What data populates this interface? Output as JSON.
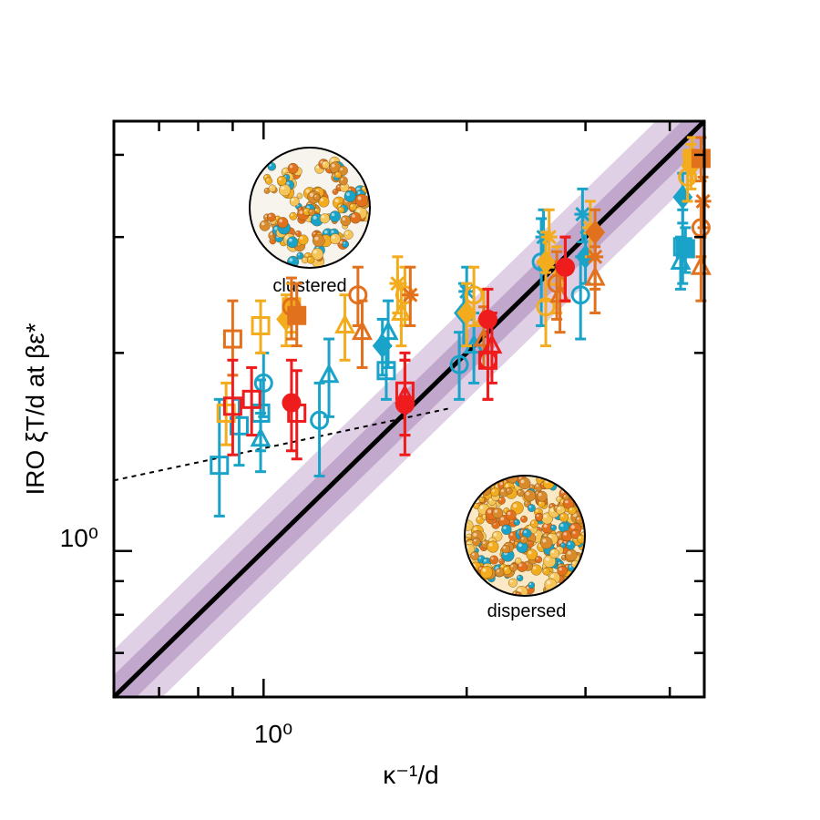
{
  "chart_data": {
    "type": "scatter",
    "scale": "log-log",
    "xlabel": "κ⁻¹/d",
    "ylabel": "IRO ξT/d at βε*",
    "xlim": [
      0.6,
      4.5
    ],
    "ylim": [
      0.6,
      4.5
    ],
    "x_tick_labels": [
      {
        "value": 1.0,
        "text": "10⁰"
      }
    ],
    "y_tick_labels": [
      {
        "value": 1.0,
        "text": "10⁰"
      }
    ],
    "reference_line": {
      "description": "y = x",
      "color": "#000000"
    },
    "bands": [
      {
        "factor": 1.18,
        "color": "#d6c0de"
      },
      {
        "factor": 1.08,
        "color": "#b89ac4"
      }
    ],
    "fit_line": {
      "style": "dotted",
      "x": [
        0.6,
        1.9
      ],
      "y": [
        1.28,
        1.65
      ]
    },
    "insets": [
      {
        "label": "clustered",
        "x": 1.1,
        "y": 3.8,
        "state": "clustered"
      },
      {
        "label": "dispersed",
        "x": 2.9,
        "y": 1.0,
        "state": "dispersed"
      }
    ],
    "series": [
      {
        "name": "cyan-square-open",
        "color": "#1aa3c8",
        "marker": "square",
        "filled": false,
        "points": [
          {
            "x": 0.86,
            "y": 1.35,
            "lo": 1.13,
            "hi": 1.7
          },
          {
            "x": 0.92,
            "y": 1.55,
            "lo": 1.35,
            "hi": 1.7
          },
          {
            "x": 0.99,
            "y": 1.62,
            "lo": 1.42,
            "hi": 1.82
          },
          {
            "x": 1.52,
            "y": 1.88,
            "lo": 1.7,
            "hi": 2.05
          },
          {
            "x": 4.18,
            "y": 2.9,
            "lo": 2.55,
            "hi": 3.3
          }
        ]
      },
      {
        "name": "cyan-circle-open",
        "color": "#1aa3c8",
        "marker": "circle",
        "filled": false,
        "points": [
          {
            "x": 1.0,
            "y": 1.8,
            "lo": 1.6,
            "hi": 2.0
          },
          {
            "x": 1.21,
            "y": 1.58,
            "lo": 1.3,
            "hi": 1.8
          },
          {
            "x": 1.95,
            "y": 1.92,
            "lo": 1.7,
            "hi": 2.15
          },
          {
            "x": 2.58,
            "y": 2.75,
            "lo": 2.2,
            "hi": 3.2
          },
          {
            "x": 2.95,
            "y": 2.45,
            "lo": 2.1,
            "hi": 2.8
          }
        ]
      },
      {
        "name": "cyan-triangle-open",
        "color": "#1aa3c8",
        "marker": "triangle",
        "filled": false,
        "points": [
          {
            "x": 0.99,
            "y": 1.48,
            "lo": 1.32,
            "hi": 1.62
          },
          {
            "x": 1.25,
            "y": 1.85,
            "lo": 1.6,
            "hi": 2.1
          },
          {
            "x": 1.53,
            "y": 2.15,
            "lo": 1.9,
            "hi": 2.4
          },
          {
            "x": 2.05,
            "y": 2.05,
            "lo": 1.8,
            "hi": 2.3
          },
          {
            "x": 4.15,
            "y": 2.75,
            "lo": 2.5,
            "hi": 3.0
          }
        ]
      },
      {
        "name": "cyan-diamond-filled",
        "color": "#1aa3c8",
        "marker": "diamond",
        "filled": true,
        "points": [
          {
            "x": 1.5,
            "y": 2.05,
            "lo": 1.85,
            "hi": 2.25
          },
          {
            "x": 1.98,
            "y": 2.3,
            "lo": 2.05,
            "hi": 2.55
          },
          {
            "x": 3.0,
            "y": 2.8,
            "lo": 2.55,
            "hi": 3.05
          },
          {
            "x": 4.18,
            "y": 3.45,
            "lo": 3.15,
            "hi": 3.75
          }
        ]
      },
      {
        "name": "cyan-star",
        "color": "#1aa3c8",
        "marker": "star",
        "filled": false,
        "points": [
          {
            "x": 2.0,
            "y": 2.48,
            "lo": 2.25,
            "hi": 2.7
          },
          {
            "x": 2.6,
            "y": 3.0,
            "lo": 2.7,
            "hi": 3.3
          },
          {
            "x": 2.97,
            "y": 3.25,
            "lo": 2.95,
            "hi": 3.55
          }
        ]
      },
      {
        "name": "cyan-square-filled",
        "color": "#1aa3c8",
        "marker": "square",
        "filled": true,
        "points": [
          {
            "x": 4.22,
            "y": 2.88,
            "lo": 2.65,
            "hi": 3.1
          }
        ]
      },
      {
        "name": "yellow-square-open",
        "color": "#f3ac1e",
        "marker": "square",
        "filled": false,
        "points": [
          {
            "x": 0.88,
            "y": 1.62,
            "lo": 1.45,
            "hi": 1.8
          },
          {
            "x": 0.99,
            "y": 2.2,
            "lo": 2.0,
            "hi": 2.4
          }
        ]
      },
      {
        "name": "yellow-circle-open",
        "color": "#f3ac1e",
        "marker": "circle",
        "filled": false,
        "points": [
          {
            "x": 1.62,
            "y": 2.45,
            "lo": 2.2,
            "hi": 2.7
          },
          {
            "x": 2.05,
            "y": 2.45,
            "lo": 2.2,
            "hi": 2.7
          },
          {
            "x": 2.62,
            "y": 2.35,
            "lo": 2.05,
            "hi": 2.65
          },
          {
            "x": 4.25,
            "y": 3.7,
            "lo": 3.4,
            "hi": 4.0
          }
        ]
      },
      {
        "name": "yellow-triangle-open",
        "color": "#f3ac1e",
        "marker": "triangle",
        "filled": false,
        "points": [
          {
            "x": 1.32,
            "y": 2.2,
            "lo": 1.95,
            "hi": 2.45
          },
          {
            "x": 1.6,
            "y": 2.3,
            "lo": 2.05,
            "hi": 2.55
          },
          {
            "x": 2.12,
            "y": 2.25,
            "lo": 2.0,
            "hi": 2.5
          },
          {
            "x": 2.72,
            "y": 2.6,
            "lo": 2.3,
            "hi": 2.9
          }
        ]
      },
      {
        "name": "yellow-diamond-filled",
        "color": "#f3ac1e",
        "marker": "diamond",
        "filled": true,
        "points": [
          {
            "x": 1.08,
            "y": 2.25,
            "lo": 2.05,
            "hi": 2.45
          },
          {
            "x": 2.0,
            "y": 2.3,
            "lo": 2.05,
            "hi": 2.55
          },
          {
            "x": 2.62,
            "y": 2.75,
            "lo": 2.4,
            "hi": 3.05
          },
          {
            "x": 4.3,
            "y": 3.85,
            "lo": 3.55,
            "hi": 4.15
          }
        ]
      },
      {
        "name": "yellow-star",
        "color": "#f3ac1e",
        "marker": "star",
        "filled": false,
        "points": [
          {
            "x": 1.58,
            "y": 2.55,
            "lo": 2.3,
            "hi": 2.8
          },
          {
            "x": 2.65,
            "y": 3.0,
            "lo": 2.7,
            "hi": 3.3
          },
          {
            "x": 3.05,
            "y": 3.1,
            "lo": 2.8,
            "hi": 3.4
          }
        ]
      },
      {
        "name": "yellow-square-filled",
        "color": "#f3ac1e",
        "marker": "square",
        "filled": true,
        "points": [
          {
            "x": 1.1,
            "y": 2.35,
            "lo": 2.15,
            "hi": 2.55
          },
          {
            "x": 4.32,
            "y": 3.95,
            "lo": 3.65,
            "hi": 4.25
          }
        ]
      },
      {
        "name": "orange-square-open",
        "color": "#e2711d",
        "marker": "square",
        "filled": false,
        "points": [
          {
            "x": 0.9,
            "y": 2.1,
            "lo": 1.85,
            "hi": 2.4
          }
        ]
      },
      {
        "name": "orange-circle-open",
        "color": "#e2711d",
        "marker": "circle",
        "filled": false,
        "points": [
          {
            "x": 1.1,
            "y": 2.35,
            "lo": 2.1,
            "hi": 2.6
          },
          {
            "x": 1.38,
            "y": 2.45,
            "lo": 2.2,
            "hi": 2.7
          },
          {
            "x": 2.72,
            "y": 2.55,
            "lo": 2.25,
            "hi": 2.85
          },
          {
            "x": 4.45,
            "y": 3.1,
            "lo": 2.8,
            "hi": 3.4
          }
        ]
      },
      {
        "name": "orange-triangle-open",
        "color": "#e2711d",
        "marker": "triangle",
        "filled": false,
        "points": [
          {
            "x": 1.4,
            "y": 2.15,
            "lo": 1.9,
            "hi": 2.4
          },
          {
            "x": 2.12,
            "y": 2.1,
            "lo": 1.9,
            "hi": 2.35
          },
          {
            "x": 2.75,
            "y": 2.45,
            "lo": 2.15,
            "hi": 2.75
          },
          {
            "x": 3.1,
            "y": 2.6,
            "lo": 2.3,
            "hi": 2.9
          },
          {
            "x": 4.45,
            "y": 2.7,
            "lo": 2.4,
            "hi": 3.0
          }
        ]
      },
      {
        "name": "orange-diamond-filled",
        "color": "#e2711d",
        "marker": "diamond",
        "filled": true,
        "points": [
          {
            "x": 3.1,
            "y": 3.05,
            "lo": 2.8,
            "hi": 3.3
          }
        ]
      },
      {
        "name": "orange-star",
        "color": "#e2711d",
        "marker": "star",
        "filled": false,
        "points": [
          {
            "x": 1.65,
            "y": 2.45,
            "lo": 2.2,
            "hi": 2.7
          },
          {
            "x": 3.1,
            "y": 2.8,
            "lo": 2.5,
            "hi": 3.1
          },
          {
            "x": 4.48,
            "y": 3.4,
            "lo": 3.1,
            "hi": 3.7
          }
        ]
      },
      {
        "name": "orange-square-filled",
        "color": "#e2711d",
        "marker": "square",
        "filled": true,
        "points": [
          {
            "x": 1.12,
            "y": 2.28,
            "lo": 2.05,
            "hi": 2.55
          },
          {
            "x": 4.45,
            "y": 3.95,
            "lo": 3.65,
            "hi": 4.25
          }
        ]
      },
      {
        "name": "red-square-open",
        "color": "#ee1c1c",
        "marker": "square",
        "filled": false,
        "points": [
          {
            "x": 0.9,
            "y": 1.66,
            "lo": 1.4,
            "hi": 1.95
          },
          {
            "x": 0.96,
            "y": 1.7,
            "lo": 1.5,
            "hi": 1.9
          },
          {
            "x": 1.12,
            "y": 1.62,
            "lo": 1.38,
            "hi": 1.88
          },
          {
            "x": 1.62,
            "y": 1.75,
            "lo": 1.5,
            "hi": 2.0
          },
          {
            "x": 2.15,
            "y": 1.95,
            "lo": 1.7,
            "hi": 2.2
          }
        ]
      },
      {
        "name": "red-circle-open",
        "color": "#ee1c1c",
        "marker": "circle",
        "filled": false,
        "points": [
          {
            "x": 2.15,
            "y": 1.95,
            "lo": 1.7,
            "hi": 2.2
          },
          {
            "x": 2.8,
            "y": 2.7,
            "lo": 2.4,
            "hi": 3.0
          }
        ]
      },
      {
        "name": "red-triangle-open",
        "color": "#ee1c1c",
        "marker": "triangle",
        "filled": false,
        "points": [
          {
            "x": 1.62,
            "y": 1.72,
            "lo": 1.5,
            "hi": 1.95
          },
          {
            "x": 2.18,
            "y": 2.05,
            "lo": 1.8,
            "hi": 2.3
          }
        ]
      },
      {
        "name": "red-circle-filled",
        "color": "#ee1c1c",
        "marker": "circle",
        "filled": true,
        "points": [
          {
            "x": 1.1,
            "y": 1.68,
            "lo": 1.42,
            "hi": 1.95
          },
          {
            "x": 1.62,
            "y": 1.67,
            "lo": 1.4,
            "hi": 1.95
          },
          {
            "x": 2.15,
            "y": 2.25,
            "lo": 2.0,
            "hi": 2.5
          },
          {
            "x": 2.8,
            "y": 2.7,
            "lo": 2.4,
            "hi": 3.0
          }
        ]
      }
    ]
  }
}
